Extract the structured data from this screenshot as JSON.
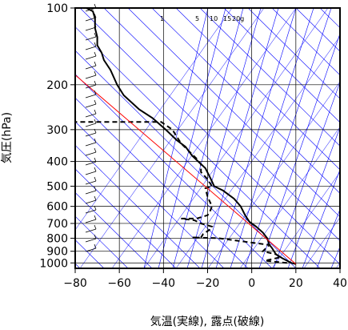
{
  "chart_data": {
    "type": "line",
    "title": "",
    "xlabel": "気温(実線), 露点(破線)",
    "ylabel": "気圧(hPa)",
    "x_range": [
      -80,
      40
    ],
    "p_range": [
      100,
      1050
    ],
    "y_scale": "log",
    "x_ticks": [
      -80,
      -60,
      -40,
      -20,
      0,
      20,
      40
    ],
    "x_tick_labels": [
      "−80",
      "−60",
      "−40",
      "−20",
      "0",
      "20",
      "40"
    ],
    "p_ticks": [
      100,
      200,
      300,
      400,
      500,
      600,
      700,
      800,
      900,
      1000
    ],
    "p_tick_labels": [
      "100",
      "200",
      "300",
      "400",
      "500",
      "600",
      "700",
      "800",
      "900",
      "1000"
    ],
    "mixing_ratio_labels": [
      "1",
      "5",
      "10",
      "15",
      "20g"
    ],
    "colors": {
      "temperature": "#000000",
      "dewpoint": "#000000",
      "parcel": "#ff0000",
      "background_lines": "#0000ff",
      "grid": "#000000"
    },
    "series": [
      {
        "key": "temperature",
        "style": "solid",
        "points": [
          [
            20,
            1010
          ],
          [
            18,
            1000
          ],
          [
            14,
            960
          ],
          [
            11,
            925
          ],
          [
            9,
            870
          ],
          [
            8,
            850
          ],
          [
            7,
            800
          ],
          [
            5,
            760
          ],
          [
            2,
            720
          ],
          [
            -1,
            690
          ],
          [
            -3,
            650
          ],
          [
            -5,
            600
          ],
          [
            -8,
            560
          ],
          [
            -13,
            520
          ],
          [
            -17,
            500
          ],
          [
            -19,
            460
          ],
          [
            -21,
            425
          ],
          [
            -27,
            380
          ],
          [
            -30,
            350
          ],
          [
            -34,
            330
          ],
          [
            -39,
            300
          ],
          [
            -45,
            270
          ],
          [
            -51,
            250
          ],
          [
            -58,
            220
          ],
          [
            -61,
            200
          ],
          [
            -64,
            175
          ],
          [
            -67,
            160
          ],
          [
            -68,
            150
          ],
          [
            -70,
            140
          ],
          [
            -70,
            130
          ],
          [
            -71,
            120
          ],
          [
            -71,
            110
          ],
          [
            -72,
            103
          ],
          [
            -75,
            100
          ]
        ]
      },
      {
        "key": "dewpoint",
        "style": "dashed",
        "points": [
          [
            16,
            1000
          ],
          [
            6,
            980
          ],
          [
            13,
            950
          ],
          [
            11,
            925
          ],
          [
            5,
            900
          ],
          [
            8,
            850
          ],
          [
            -15,
            800
          ],
          [
            -27,
            795
          ],
          [
            -23,
            795
          ],
          [
            -22,
            770
          ],
          [
            -19,
            740
          ],
          [
            -18,
            720
          ],
          [
            -23,
            700
          ],
          [
            -26,
            680
          ],
          [
            -32,
            670
          ],
          [
            -25,
            670
          ],
          [
            -20,
            650
          ],
          [
            -19,
            630
          ],
          [
            -18,
            600
          ],
          [
            -20,
            550
          ],
          [
            -21,
            510
          ],
          [
            -18,
            500
          ],
          [
            -20,
            470
          ],
          [
            -23,
            440
          ],
          [
            -23,
            410
          ],
          [
            -25,
            390
          ],
          [
            -32,
            340
          ],
          [
            -36,
            300
          ],
          [
            -41,
            280
          ],
          [
            -80,
            280
          ]
        ]
      },
      {
        "key": "parcel",
        "style": "solid",
        "points": [
          [
            20,
            1010
          ],
          [
            -81,
            180
          ]
        ]
      }
    ]
  }
}
